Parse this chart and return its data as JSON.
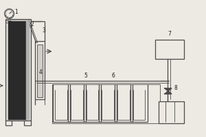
{
  "bg_color": "#ede9e3",
  "line_color": "#4a4a4a",
  "dark_color": "#1a1a1a",
  "fill_dark": "#2a2a2a",
  "fill_light": "#c8c8c8",
  "lw": 0.9,
  "lw_thin": 0.6,
  "lw_thick": 1.4,
  "label_fs": 5.5
}
